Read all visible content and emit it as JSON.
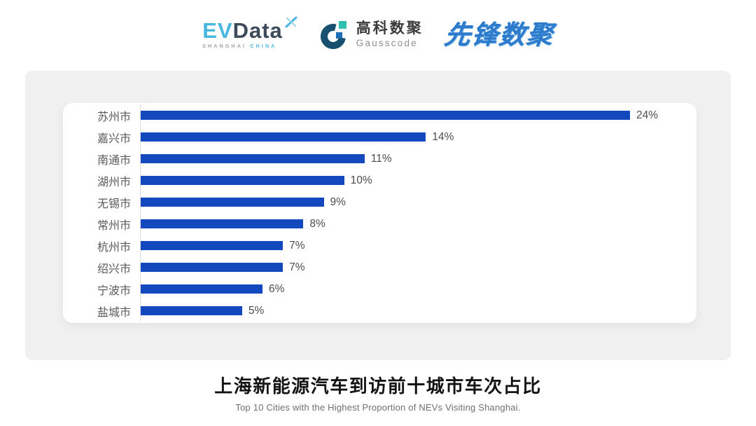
{
  "header": {
    "logos": {
      "evdata": {
        "ev": "EV",
        "data": "Data",
        "sub_left": "SHANGHAI",
        "sub_right": "CHINA",
        "color_ev": "#47b7e0",
        "color_data": "#3c4a5a"
      },
      "gausscode": {
        "cn": "高科数聚",
        "en": "Gausscode",
        "mark_color": "#17516f",
        "mark_accent_teal": "#2fbfae",
        "mark_accent_blue": "#1e6eb5"
      },
      "xianfeng": {
        "text": "先锋数聚",
        "color": "#2e7bce"
      }
    }
  },
  "chart_data": {
    "type": "bar",
    "orientation": "horizontal",
    "categories": [
      "苏州市",
      "嘉兴市",
      "南通市",
      "湖州市",
      "无锡市",
      "常州市",
      "杭州市",
      "绍兴市",
      "宁波市",
      "盐城市"
    ],
    "values": [
      24,
      14,
      11,
      10,
      9,
      8,
      7,
      7,
      6,
      5
    ],
    "value_labels": [
      "24%",
      "14%",
      "11%",
      "10%",
      "9%",
      "8%",
      "7%",
      "7%",
      "6%",
      "5%"
    ],
    "title": "上海新能源汽车到访前十城市车次占比",
    "subtitle": "Top 10 Cities with the Highest Proportion of  NEVs Visiting Shanghai.",
    "xlabel": "",
    "ylabel": "",
    "xlim": [
      0,
      24
    ],
    "grid": false,
    "legend": false,
    "bar_color": "#1348be",
    "axis_line_color": "#dcdcdc",
    "label_color": "#595959",
    "value_color": "#4c4c4c"
  }
}
